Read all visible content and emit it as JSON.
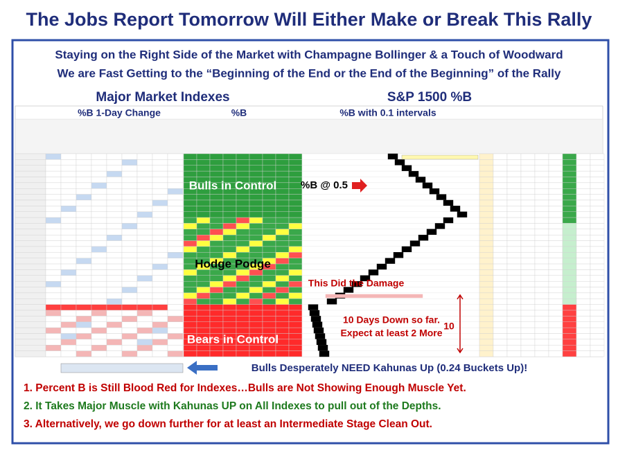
{
  "header": {
    "title": "The Jobs Report Tomorrow Will Either Make or Break This Rally",
    "subtitle_1": "Staying on the Right Side of the Market with Champagne Bollinger & a Touch of Woodward",
    "subtitle_2": "We are Fast Getting to the “Beginning of the End or the End of the Beginning” of the Rally"
  },
  "sections": {
    "left_heading": "Major Market Indexes",
    "right_heading": "S&P 1500 %B",
    "col_heading_1": "%B 1-Day Change",
    "col_heading_2": "%B",
    "col_heading_3": "%B with 0.1 intervals"
  },
  "annotations": {
    "bulls": "Bulls in Control",
    "pb_half": "%B @ 0.5",
    "hodge": "Hodge Podge",
    "damage": "This Did the Damage",
    "days_down_1": "10 Days Down so far.",
    "days_down_2": "Expect at least 2 More",
    "ten": "10",
    "bears": "Bears in Control",
    "kahunas": "Bulls Desperately NEED Kahunas Up (0.24 Buckets Up)!"
  },
  "notes": [
    "1. Percent B is Still Blood Red for Indexes…Bulls are Not Showing Enough Muscle Yet.",
    "2. It Takes Major Muscle with Kahunas UP on All Indexes to pull out of the Depths.",
    "3. Alternatively, we go down further for at least an Intermediate Stage Clean Out."
  ]
}
